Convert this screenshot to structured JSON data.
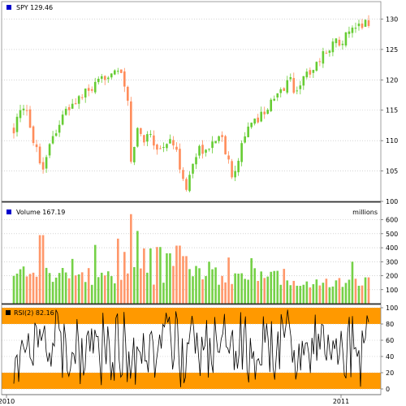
{
  "chart_data": {
    "type": "line",
    "x_labels": [
      "2010",
      "2011"
    ],
    "panels": [
      {
        "id": "price",
        "legend": "SPY 129.46",
        "legend_color": "#0000cc",
        "style": "candlestick",
        "up_color": "#66cc33",
        "down_color": "#ff8c5a",
        "ylim": [
          100,
          131
        ],
        "yticks": [
          100,
          105,
          110,
          115,
          120,
          125,
          130
        ],
        "grid": true,
        "anchors": [
          [
            0,
            112.0
          ],
          [
            8,
            114.5
          ],
          [
            15,
            115.0
          ],
          [
            22,
            111.0
          ],
          [
            28,
            109.0
          ],
          [
            34,
            104.8
          ],
          [
            42,
            109.0
          ],
          [
            52,
            112.0
          ],
          [
            62,
            114.5
          ],
          [
            72,
            116.0
          ],
          [
            84,
            117.5
          ],
          [
            96,
            118.5
          ],
          [
            108,
            120.0
          ],
          [
            118,
            121.5
          ],
          [
            126,
            122.0
          ],
          [
            132,
            120.0
          ],
          [
            137,
            118.0
          ],
          [
            140,
            115.0
          ],
          [
            142,
            105.5
          ],
          [
            145,
            108.0
          ],
          [
            150,
            112.0
          ],
          [
            158,
            110.0
          ],
          [
            165,
            112.0
          ],
          [
            172,
            109.0
          ],
          [
            180,
            108.5
          ],
          [
            187,
            110.0
          ],
          [
            194,
            109.5
          ],
          [
            200,
            107.0
          ],
          [
            206,
            104.0
          ],
          [
            210,
            101.5
          ],
          [
            214,
            104.5
          ],
          [
            220,
            107.0
          ],
          [
            226,
            109.0
          ],
          [
            234,
            108.0
          ],
          [
            242,
            109.5
          ],
          [
            250,
            111.5
          ],
          [
            256,
            109.0
          ],
          [
            262,
            106.0
          ],
          [
            266,
            104.5
          ],
          [
            272,
            106.5
          ],
          [
            280,
            111.0
          ],
          [
            290,
            112.5
          ],
          [
            302,
            114.5
          ],
          [
            312,
            116.0
          ],
          [
            322,
            117.5
          ],
          [
            330,
            119.0
          ],
          [
            336,
            120.5
          ],
          [
            341,
            118.0
          ],
          [
            346,
            119.0
          ],
          [
            354,
            120.5
          ],
          [
            364,
            122.0
          ],
          [
            376,
            124.0
          ],
          [
            388,
            126.0
          ],
          [
            398,
            126.5
          ],
          [
            408,
            127.5
          ],
          [
            418,
            128.5
          ],
          [
            426,
            129.5
          ],
          [
            432,
            129.46
          ]
        ]
      },
      {
        "id": "volume",
        "legend": "Volume 167.19",
        "legend_color": "#0000cc",
        "unit_label": "millions",
        "style": "histogram",
        "ylim": [
          0,
          650
        ],
        "yticks": [
          100,
          200,
          300,
          400,
          500,
          600
        ],
        "grid": true,
        "spikes": [
          [
            34,
            490
          ],
          [
            72,
            320
          ],
          [
            98,
            420
          ],
          [
            128,
            465
          ],
          [
            134,
            370
          ],
          [
            142,
            640
          ],
          [
            150,
            520
          ],
          [
            158,
            395
          ],
          [
            166,
            395
          ],
          [
            176,
            405
          ],
          [
            188,
            360
          ],
          [
            200,
            415
          ],
          [
            208,
            340
          ],
          [
            238,
            300
          ],
          [
            262,
            330
          ],
          [
            288,
            325
          ],
          [
            412,
            300
          ]
        ]
      },
      {
        "id": "rsi",
        "legend": "RSI(2) 82.16",
        "legend_color": "#000000",
        "style": "line",
        "ylim": [
          0,
          100
        ],
        "yticks": [
          0,
          20,
          40,
          60,
          80,
          100
        ],
        "bands": [
          {
            "from": 80,
            "to": 100,
            "color": "#ff9900"
          },
          {
            "from": 0,
            "to": 20,
            "color": "#ff9900"
          }
        ],
        "last_value": 82.16
      }
    ]
  }
}
